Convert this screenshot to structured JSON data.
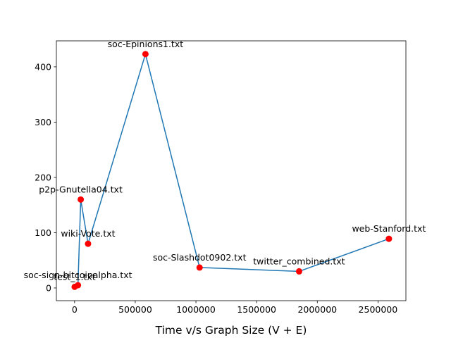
{
  "chart_data": {
    "type": "line",
    "title": "",
    "xlabel": "Time v/s Graph Size (V + E)",
    "ylabel": "",
    "xlim": [
      -150000,
      2730000
    ],
    "ylim": [
      -23,
      447
    ],
    "x_ticks": [
      0,
      500000,
      1000000,
      1500000,
      2000000,
      2500000
    ],
    "y_ticks": [
      0,
      100,
      200,
      300,
      400
    ],
    "grid": false,
    "line_color": "#1f77b4",
    "marker_color": "#ff0000",
    "points": [
      {
        "label": "test_1.txt",
        "x": 600,
        "y": 2
      },
      {
        "label": "soc-sign-bitcoinalpha.txt",
        "x": 27800,
        "y": 5
      },
      {
        "label": "p2p-Gnutella04.txt",
        "x": 50700,
        "y": 160
      },
      {
        "label": "wiki-Vote.txt",
        "x": 111000,
        "y": 80
      },
      {
        "label": "soc-Epinions1.txt",
        "x": 584000,
        "y": 423
      },
      {
        "label": "soc-Slashdot0902.txt",
        "x": 1030000,
        "y": 37
      },
      {
        "label": "twitter_combined.txt",
        "x": 1850000,
        "y": 30
      },
      {
        "label": "web-Stanford.txt",
        "x": 2590000,
        "y": 89
      }
    ]
  }
}
